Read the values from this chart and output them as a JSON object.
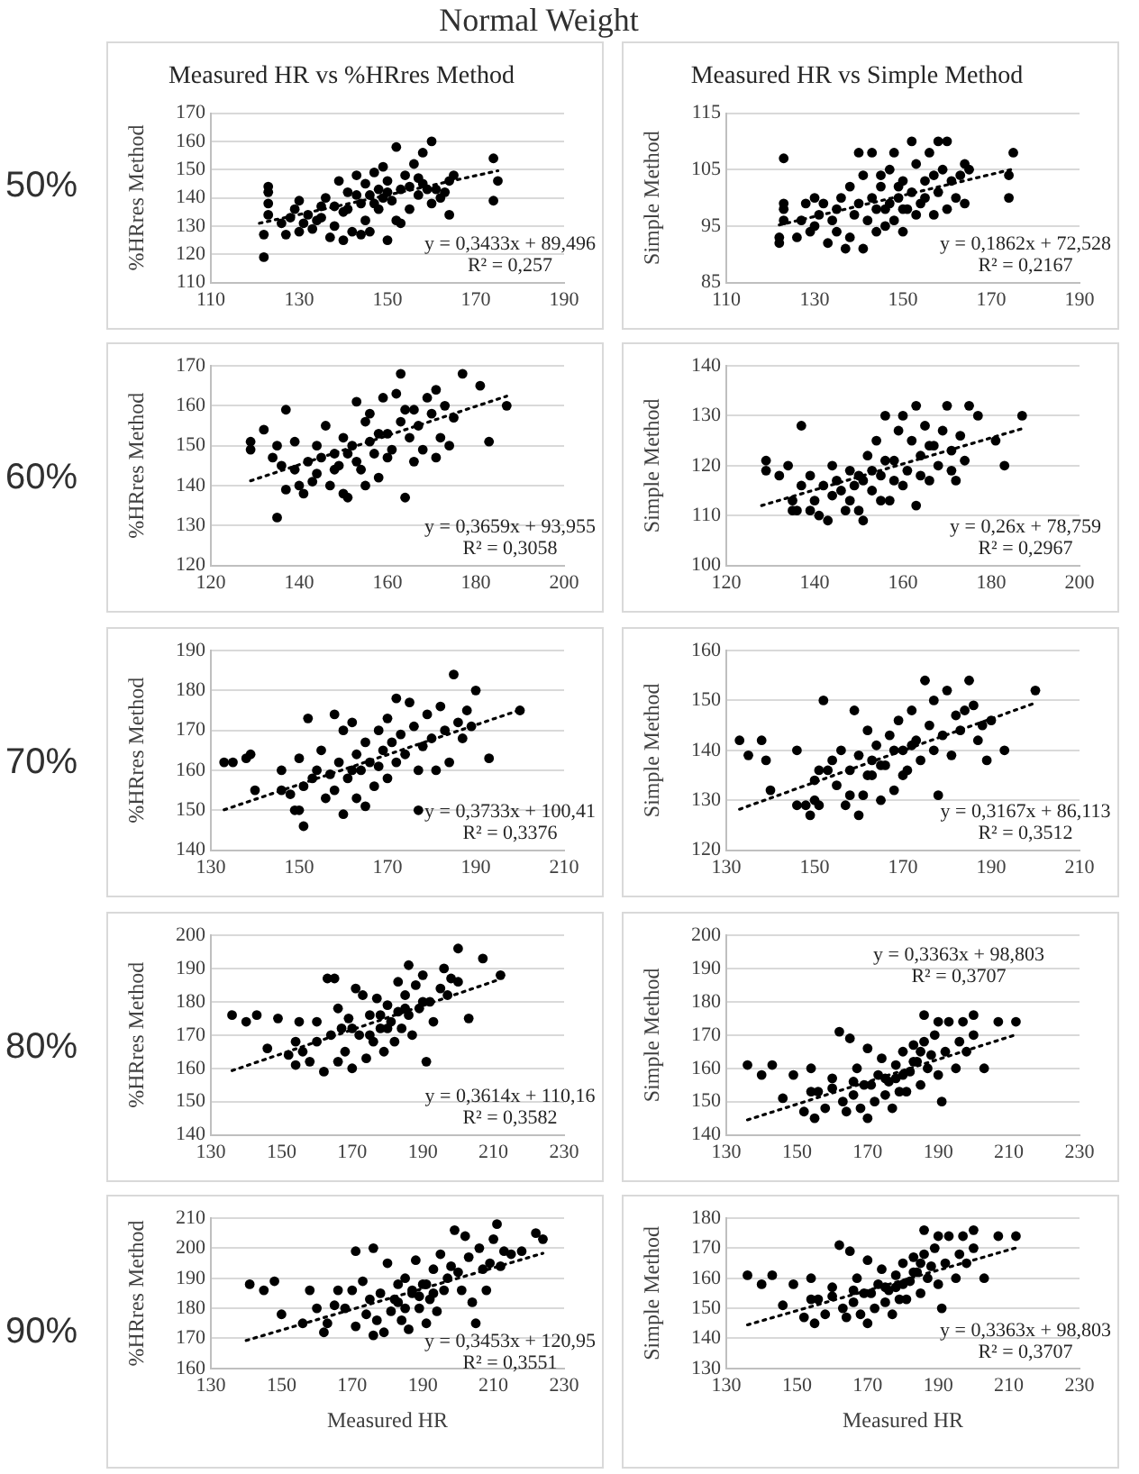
{
  "chart_data": [
    {
      "type": "scatter",
      "title": "Measured HR vs %HRres Method",
      "ylabel": "%HRres Method",
      "xlim": [
        110,
        190
      ],
      "xticks": [
        110,
        130,
        150,
        170,
        190
      ],
      "ylim": [
        110,
        170
      ],
      "yticks": [
        110,
        120,
        130,
        140,
        150,
        160,
        170
      ],
      "grid": "y",
      "marker": "circle",
      "series": [
        {
          "color": "#000000",
          "x": [
            122,
            122,
            123,
            123,
            123,
            123,
            126,
            127,
            128,
            129,
            130,
            130,
            131,
            132,
            133,
            134,
            135,
            135,
            136,
            137,
            138,
            138,
            139,
            140,
            140,
            141,
            141,
            142,
            143,
            143,
            144,
            144,
            145,
            145,
            146,
            146,
            147,
            147,
            148,
            148,
            149,
            149,
            150,
            150,
            150,
            151,
            152,
            152,
            153,
            153,
            154,
            155,
            155,
            156,
            157,
            157,
            158,
            158,
            159,
            160,
            160,
            161,
            162,
            163,
            164,
            164,
            165,
            174,
            174,
            175
          ],
          "values": [
            119,
            127,
            144,
            142,
            138,
            134,
            131,
            127,
            133,
            136,
            139,
            128,
            131,
            134,
            129,
            132,
            137,
            133,
            140,
            126,
            130,
            137,
            146,
            125,
            135,
            142,
            136,
            128,
            148,
            141,
            138,
            127,
            132,
            145,
            141,
            128,
            149,
            138,
            136,
            143,
            151,
            140,
            125,
            146,
            142,
            139,
            158,
            132,
            143,
            131,
            148,
            136,
            144,
            152,
            141,
            147,
            156,
            145,
            143,
            160,
            138,
            143,
            140,
            142,
            146,
            134,
            148,
            154,
            139,
            146
          ]
        },
        {
          "type": "line",
          "color": "#000000",
          "line_style": "dotted",
          "marker": "none",
          "x": [
            121,
            175
          ],
          "values": [
            131,
            149.6
          ]
        }
      ],
      "annotations": [
        "Normal Weight",
        "50%",
        "y = 0,3433x + 89,496",
        "R² = 0,257"
      ]
    },
    {
      "type": "scatter",
      "title": "Measured HR vs Simple Method",
      "ylabel": "Simple Method",
      "xlim": [
        110,
        190
      ],
      "xticks": [
        110,
        130,
        150,
        170,
        190
      ],
      "ylim": [
        85,
        115
      ],
      "yticks": [
        85,
        95,
        105,
        115
      ],
      "grid": "y",
      "marker": "circle",
      "series": [
        {
          "color": "#000000",
          "x": [
            122,
            122,
            123,
            123,
            123,
            123,
            126,
            127,
            128,
            129,
            130,
            130,
            131,
            132,
            133,
            134,
            135,
            135,
            136,
            137,
            138,
            138,
            139,
            140,
            140,
            141,
            141,
            142,
            143,
            143,
            144,
            144,
            145,
            145,
            146,
            146,
            147,
            147,
            148,
            148,
            149,
            149,
            150,
            150,
            150,
            151,
            152,
            152,
            153,
            153,
            154,
            155,
            155,
            156,
            157,
            157,
            158,
            158,
            159,
            160,
            160,
            161,
            162,
            163,
            164,
            164,
            165,
            174,
            174,
            175
          ],
          "values": [
            93,
            92,
            107,
            99,
            98,
            96,
            93,
            96,
            99,
            94,
            100,
            95,
            97,
            99,
            92,
            96,
            98,
            94,
            100,
            91,
            93,
            102,
            97,
            99,
            108,
            91,
            104,
            96,
            100,
            108,
            98,
            94,
            102,
            104,
            98,
            95,
            105,
            99,
            108,
            96,
            100,
            102,
            103,
            94,
            98,
            98,
            110,
            101,
            106,
            97,
            99,
            103,
            100,
            108,
            97,
            104,
            110,
            101,
            105,
            110,
            98,
            103,
            100,
            104,
            99,
            106,
            105,
            100,
            104,
            108
          ]
        },
        {
          "type": "line",
          "color": "#000000",
          "line_style": "dotted",
          "marker": "none",
          "x": [
            122,
            175
          ],
          "values": [
            95.2,
            105.1
          ]
        }
      ],
      "annotations": [
        "y = 0,1862x + 72,528",
        "R² = 0,2167"
      ]
    },
    {
      "type": "scatter",
      "ylabel": "%HRres Method",
      "xlim": [
        120,
        200
      ],
      "xticks": [
        120,
        140,
        160,
        180,
        200
      ],
      "ylim": [
        120,
        170
      ],
      "yticks": [
        120,
        130,
        140,
        150,
        160,
        170
      ],
      "grid": "y",
      "marker": "circle",
      "series": [
        {
          "color": "#000000",
          "x": [
            129,
            129,
            132,
            134,
            135,
            135,
            136,
            137,
            137,
            139,
            139,
            140,
            141,
            142,
            143,
            144,
            144,
            145,
            146,
            147,
            148,
            148,
            149,
            150,
            150,
            151,
            151,
            152,
            153,
            153,
            154,
            155,
            155,
            156,
            156,
            157,
            158,
            158,
            159,
            160,
            160,
            161,
            162,
            163,
            163,
            164,
            164,
            165,
            166,
            166,
            167,
            168,
            169,
            170,
            171,
            171,
            172,
            173,
            174,
            175,
            177,
            181,
            183,
            187
          ],
          "values": [
            151,
            149,
            154,
            147,
            132,
            150,
            145,
            139,
            159,
            151,
            144,
            140,
            138,
            146,
            141,
            150,
            143,
            147,
            155,
            140,
            148,
            144,
            145,
            152,
            138,
            137,
            148,
            150,
            161,
            146,
            144,
            156,
            140,
            158,
            151,
            148,
            142,
            153,
            162,
            153,
            147,
            149,
            163,
            168,
            156,
            137,
            159,
            152,
            159,
            146,
            155,
            149,
            162,
            158,
            147,
            164,
            152,
            160,
            150,
            157,
            168,
            165,
            151,
            160
          ]
        },
        {
          "type": "line",
          "color": "#000000",
          "line_style": "dotted",
          "marker": "none",
          "x": [
            129,
            187
          ],
          "values": [
            141.2,
            162.4
          ]
        }
      ],
      "annotations": [
        "60%",
        "y = 0,3659x + 93,955",
        "R² = 0,3058"
      ]
    },
    {
      "type": "scatter",
      "ylabel": "Simple Method",
      "xlim": [
        120,
        200
      ],
      "xticks": [
        120,
        140,
        160,
        180,
        200
      ],
      "ylim": [
        100,
        140
      ],
      "yticks": [
        100,
        110,
        120,
        130,
        140
      ],
      "grid": "y",
      "marker": "circle",
      "series": [
        {
          "color": "#000000",
          "x": [
            129,
            129,
            132,
            134,
            135,
            135,
            136,
            137,
            137,
            139,
            139,
            140,
            141,
            142,
            143,
            144,
            144,
            145,
            146,
            147,
            148,
            148,
            149,
            150,
            150,
            151,
            151,
            152,
            153,
            153,
            154,
            155,
            155,
            156,
            156,
            157,
            158,
            158,
            159,
            160,
            160,
            161,
            162,
            163,
            163,
            164,
            164,
            165,
            166,
            166,
            167,
            168,
            169,
            170,
            171,
            171,
            172,
            173,
            174,
            175,
            177,
            181,
            183,
            187
          ],
          "values": [
            121,
            119,
            118,
            120,
            113,
            111,
            111,
            116,
            128,
            111,
            118,
            113,
            110,
            116,
            109,
            120,
            114,
            117,
            115,
            111,
            119,
            113,
            116,
            111,
            118,
            109,
            117,
            122,
            115,
            119,
            125,
            118,
            113,
            130,
            121,
            113,
            121,
            117,
            127,
            130,
            116,
            119,
            125,
            132,
            112,
            122,
            118,
            128,
            117,
            124,
            124,
            120,
            127,
            132,
            119,
            123,
            117,
            126,
            121,
            132,
            130,
            125,
            120,
            130
          ]
        },
        {
          "type": "line",
          "color": "#000000",
          "line_style": "dotted",
          "marker": "none",
          "x": [
            128,
            187
          ],
          "values": [
            112,
            127.4
          ]
        }
      ],
      "annotations": [
        "y = 0,26x + 78,759",
        "R² = 0,2967"
      ]
    },
    {
      "type": "scatter",
      "ylabel": "%HRres Method",
      "xlim": [
        130,
        210
      ],
      "xticks": [
        130,
        150,
        170,
        190,
        210
      ],
      "ylim": [
        140,
        190
      ],
      "yticks": [
        140,
        150,
        160,
        170,
        180,
        190
      ],
      "grid": "y",
      "marker": "circle",
      "series": [
        {
          "color": "#000000",
          "x": [
            133,
            135,
            138,
            139,
            140,
            146,
            146,
            148,
            149,
            150,
            150,
            151,
            151,
            152,
            153,
            154,
            155,
            156,
            157,
            158,
            158,
            159,
            160,
            160,
            161,
            162,
            162,
            163,
            163,
            164,
            165,
            165,
            166,
            167,
            168,
            168,
            169,
            170,
            170,
            171,
            172,
            172,
            173,
            174,
            175,
            176,
            177,
            177,
            178,
            179,
            180,
            181,
            182,
            183,
            184,
            185,
            186,
            187,
            188,
            189,
            190,
            193,
            200
          ],
          "values": [
            162,
            162,
            163,
            164,
            155,
            160,
            155,
            154,
            150,
            163,
            150,
            146,
            156,
            173,
            158,
            160,
            165,
            153,
            159,
            174,
            155,
            162,
            149,
            170,
            158,
            172,
            160,
            153,
            164,
            160,
            151,
            167,
            162,
            156,
            170,
            161,
            165,
            158,
            173,
            167,
            178,
            162,
            169,
            164,
            177,
            171,
            160,
            150,
            166,
            174,
            168,
            160,
            176,
            170,
            162,
            184,
            172,
            168,
            175,
            171,
            180,
            163,
            175
          ]
        },
        {
          "type": "line",
          "color": "#000000",
          "line_style": "dotted",
          "marker": "none",
          "x": [
            133,
            200
          ],
          "values": [
            150.1,
            175.1
          ]
        }
      ],
      "annotations": [
        "70%",
        "y = 0,3733x + 100,41",
        "R² = 0,3376"
      ]
    },
    {
      "type": "scatter",
      "ylabel": "Simple Method",
      "xlim": [
        130,
        210
      ],
      "xticks": [
        130,
        150,
        170,
        190,
        210
      ],
      "ylim": [
        120,
        160
      ],
      "yticks": [
        120,
        130,
        140,
        150,
        160
      ],
      "grid": "y",
      "marker": "circle",
      "series": [
        {
          "color": "#000000",
          "x": [
            133,
            135,
            138,
            139,
            140,
            146,
            146,
            148,
            149,
            150,
            150,
            151,
            151,
            152,
            153,
            154,
            155,
            156,
            157,
            158,
            158,
            159,
            160,
            160,
            161,
            162,
            162,
            163,
            163,
            164,
            165,
            165,
            166,
            167,
            168,
            168,
            169,
            170,
            170,
            171,
            172,
            172,
            173,
            174,
            175,
            176,
            177,
            177,
            178,
            179,
            180,
            181,
            182,
            183,
            184,
            185,
            186,
            187,
            188,
            189,
            190,
            193,
            200
          ],
          "values": [
            142,
            139,
            142,
            138,
            132,
            140,
            129,
            129,
            127,
            134,
            130,
            136,
            129,
            150,
            136,
            138,
            133,
            140,
            129,
            136,
            131,
            148,
            127,
            139,
            131,
            144,
            135,
            135,
            138,
            141,
            130,
            137,
            137,
            143,
            132,
            140,
            146,
            140,
            135,
            136,
            148,
            141,
            142,
            138,
            154,
            145,
            140,
            150,
            131,
            143,
            152,
            139,
            147,
            144,
            148,
            154,
            149,
            142,
            145,
            138,
            146,
            140,
            152
          ]
        },
        {
          "type": "line",
          "color": "#000000",
          "line_style": "dotted",
          "marker": "none",
          "x": [
            133,
            200
          ],
          "values": [
            128.2,
            149.5
          ]
        }
      ],
      "annotations": [
        "y = 0,3167x + 86,113",
        "R² = 0,3512"
      ]
    },
    {
      "type": "scatter",
      "ylabel": "%HRres Method",
      "xlim": [
        130,
        230
      ],
      "xticks": [
        130,
        150,
        170,
        190,
        210,
        230
      ],
      "ylim": [
        140,
        200
      ],
      "yticks": [
        140,
        150,
        160,
        170,
        180,
        190,
        200
      ],
      "grid": "y",
      "marker": "circle",
      "series": [
        {
          "color": "#000000",
          "x": [
            136,
            140,
            143,
            146,
            149,
            152,
            154,
            154,
            155,
            156,
            158,
            160,
            160,
            162,
            163,
            164,
            165,
            166,
            166,
            167,
            168,
            169,
            170,
            170,
            171,
            172,
            173,
            174,
            175,
            175,
            176,
            177,
            178,
            178,
            179,
            180,
            180,
            181,
            182,
            183,
            183,
            184,
            185,
            185,
            186,
            186,
            187,
            188,
            189,
            190,
            190,
            191,
            192,
            193,
            195,
            196,
            197,
            198,
            200,
            200,
            203,
            207,
            212
          ],
          "values": [
            176,
            174,
            176,
            166,
            175,
            164,
            161,
            168,
            174,
            165,
            162,
            174,
            168,
            159,
            187,
            170,
            187,
            162,
            178,
            172,
            165,
            175,
            160,
            172,
            184,
            170,
            182,
            163,
            176,
            170,
            168,
            181,
            172,
            176,
            165,
            179,
            172,
            174,
            168,
            186,
            177,
            172,
            182,
            178,
            191,
            176,
            170,
            185,
            178,
            188,
            180,
            162,
            180,
            174,
            184,
            190,
            182,
            187,
            196,
            186,
            175,
            193,
            188
          ]
        },
        {
          "type": "line",
          "color": "#000000",
          "line_style": "dotted",
          "marker": "none",
          "x": [
            136,
            212
          ],
          "values": [
            159.3,
            186.8
          ]
        }
      ],
      "annotations": [
        "80%",
        "y = 0,3614x + 110,16",
        "R² = 0,3582"
      ]
    },
    {
      "type": "scatter",
      "ylabel": "Simple Method",
      "xlim": [
        130,
        230
      ],
      "xticks": [
        130,
        150,
        170,
        190,
        210,
        230
      ],
      "ylim": [
        140,
        200
      ],
      "yticks": [
        140,
        150,
        160,
        170,
        180,
        190,
        200
      ],
      "grid": "y",
      "marker": "circle",
      "series": [
        {
          "color": "#000000",
          "x": [
            136,
            140,
            143,
            146,
            149,
            152,
            154,
            154,
            155,
            156,
            158,
            160,
            160,
            162,
            163,
            164,
            165,
            166,
            166,
            167,
            168,
            169,
            170,
            170,
            171,
            172,
            173,
            174,
            175,
            175,
            176,
            177,
            178,
            178,
            179,
            180,
            180,
            181,
            182,
            183,
            183,
            184,
            185,
            185,
            186,
            186,
            187,
            188,
            189,
            190,
            190,
            191,
            192,
            193,
            195,
            196,
            197,
            198,
            200,
            200,
            203,
            207,
            212
          ],
          "values": [
            161,
            158,
            161,
            151,
            158,
            147,
            160,
            153,
            145,
            153,
            148,
            154,
            157,
            171,
            150,
            147,
            169,
            156,
            152,
            160,
            148,
            155,
            145,
            166,
            155,
            150,
            158,
            163,
            152,
            157,
            156,
            148,
            161,
            157,
            153,
            165,
            158,
            153,
            159,
            167,
            162,
            162,
            155,
            165,
            176,
            168,
            160,
            164,
            170,
            174,
            158,
            150,
            165,
            174,
            160,
            168,
            174,
            165,
            176,
            170,
            160,
            174,
            174
          ]
        },
        {
          "type": "line",
          "color": "#000000",
          "line_style": "dotted",
          "marker": "none",
          "x": [
            136,
            212
          ],
          "values": [
            144.5,
            170.1
          ]
        }
      ],
      "annotations": [
        "y = 0,3363x + 98,803",
        "R² = 0,3707"
      ]
    },
    {
      "type": "scatter",
      "xlabel": "Measured HR",
      "ylabel": "%HRres Method",
      "xlim": [
        130,
        230
      ],
      "xticks": [
        130,
        150,
        170,
        190,
        210,
        230
      ],
      "ylim": [
        160,
        210
      ],
      "yticks": [
        160,
        170,
        180,
        190,
        200,
        210
      ],
      "grid": "y",
      "marker": "circle",
      "series": [
        {
          "color": "#000000",
          "x": [
            141,
            145,
            148,
            150,
            156,
            158,
            160,
            162,
            163,
            165,
            166,
            168,
            170,
            171,
            171,
            173,
            174,
            175,
            176,
            176,
            177,
            178,
            179,
            180,
            181,
            182,
            183,
            184,
            185,
            186,
            187,
            188,
            189,
            190,
            191,
            192,
            193,
            194,
            195,
            196,
            197,
            198,
            199,
            200,
            201,
            202,
            203,
            204,
            205,
            206,
            207,
            208,
            209,
            210,
            211,
            212,
            213,
            215,
            218,
            222,
            224,
            183,
            185,
            187,
            189,
            191,
            193
          ],
          "values": [
            188,
            186,
            189,
            178,
            175,
            186,
            180,
            172,
            175,
            181,
            186,
            180,
            186,
            199,
            174,
            189,
            178,
            183,
            200,
            171,
            176,
            185,
            172,
            195,
            179,
            183,
            188,
            176,
            190,
            173,
            185,
            196,
            180,
            188,
            175,
            183,
            193,
            179,
            198,
            186,
            190,
            194,
            206,
            192,
            186,
            204,
            197,
            182,
            175,
            200,
            193,
            186,
            195,
            203,
            208,
            194,
            199,
            198,
            199,
            205,
            203,
            182,
            180,
            186,
            184,
            188,
            185
          ]
        },
        {
          "type": "line",
          "color": "#000000",
          "line_style": "dotted",
          "marker": "none",
          "x": [
            140,
            224
          ],
          "values": [
            169.3,
            198.3
          ]
        }
      ],
      "annotations": [
        "90%",
        "y = 0,3453x + 120,95",
        "R² = 0,3551"
      ]
    },
    {
      "type": "scatter",
      "xlabel": "Measured HR",
      "ylabel": "Simple Method",
      "xlim": [
        130,
        230
      ],
      "xticks": [
        130,
        150,
        170,
        190,
        210,
        230
      ],
      "ylim": [
        130,
        180
      ],
      "yticks": [
        130,
        140,
        150,
        160,
        170,
        180
      ],
      "grid": "y",
      "marker": "circle",
      "series": [
        {
          "color": "#000000",
          "x": [
            136,
            140,
            143,
            146,
            149,
            152,
            154,
            154,
            155,
            156,
            158,
            160,
            160,
            162,
            163,
            164,
            165,
            166,
            166,
            167,
            168,
            169,
            170,
            170,
            171,
            172,
            173,
            174,
            175,
            175,
            176,
            177,
            178,
            178,
            179,
            180,
            180,
            181,
            182,
            183,
            183,
            184,
            185,
            185,
            186,
            186,
            187,
            188,
            189,
            190,
            190,
            191,
            192,
            193,
            195,
            196,
            197,
            198,
            200,
            200,
            203,
            207,
            212
          ],
          "values": [
            161,
            158,
            161,
            151,
            158,
            147,
            160,
            153,
            145,
            153,
            148,
            154,
            157,
            171,
            150,
            147,
            169,
            156,
            152,
            160,
            148,
            155,
            145,
            166,
            155,
            150,
            158,
            163,
            152,
            157,
            156,
            148,
            161,
            157,
            153,
            165,
            158,
            153,
            159,
            167,
            162,
            162,
            155,
            165,
            176,
            168,
            160,
            164,
            170,
            174,
            158,
            150,
            165,
            174,
            160,
            168,
            174,
            165,
            176,
            170,
            160,
            174,
            174
          ]
        },
        {
          "type": "line",
          "color": "#000000",
          "line_style": "dotted",
          "marker": "none",
          "x": [
            136,
            212
          ],
          "values": [
            144.5,
            170.1
          ]
        }
      ],
      "annotations": [
        "y = 0,3363x + 98,803",
        "R² = 0,3707"
      ]
    }
  ]
}
